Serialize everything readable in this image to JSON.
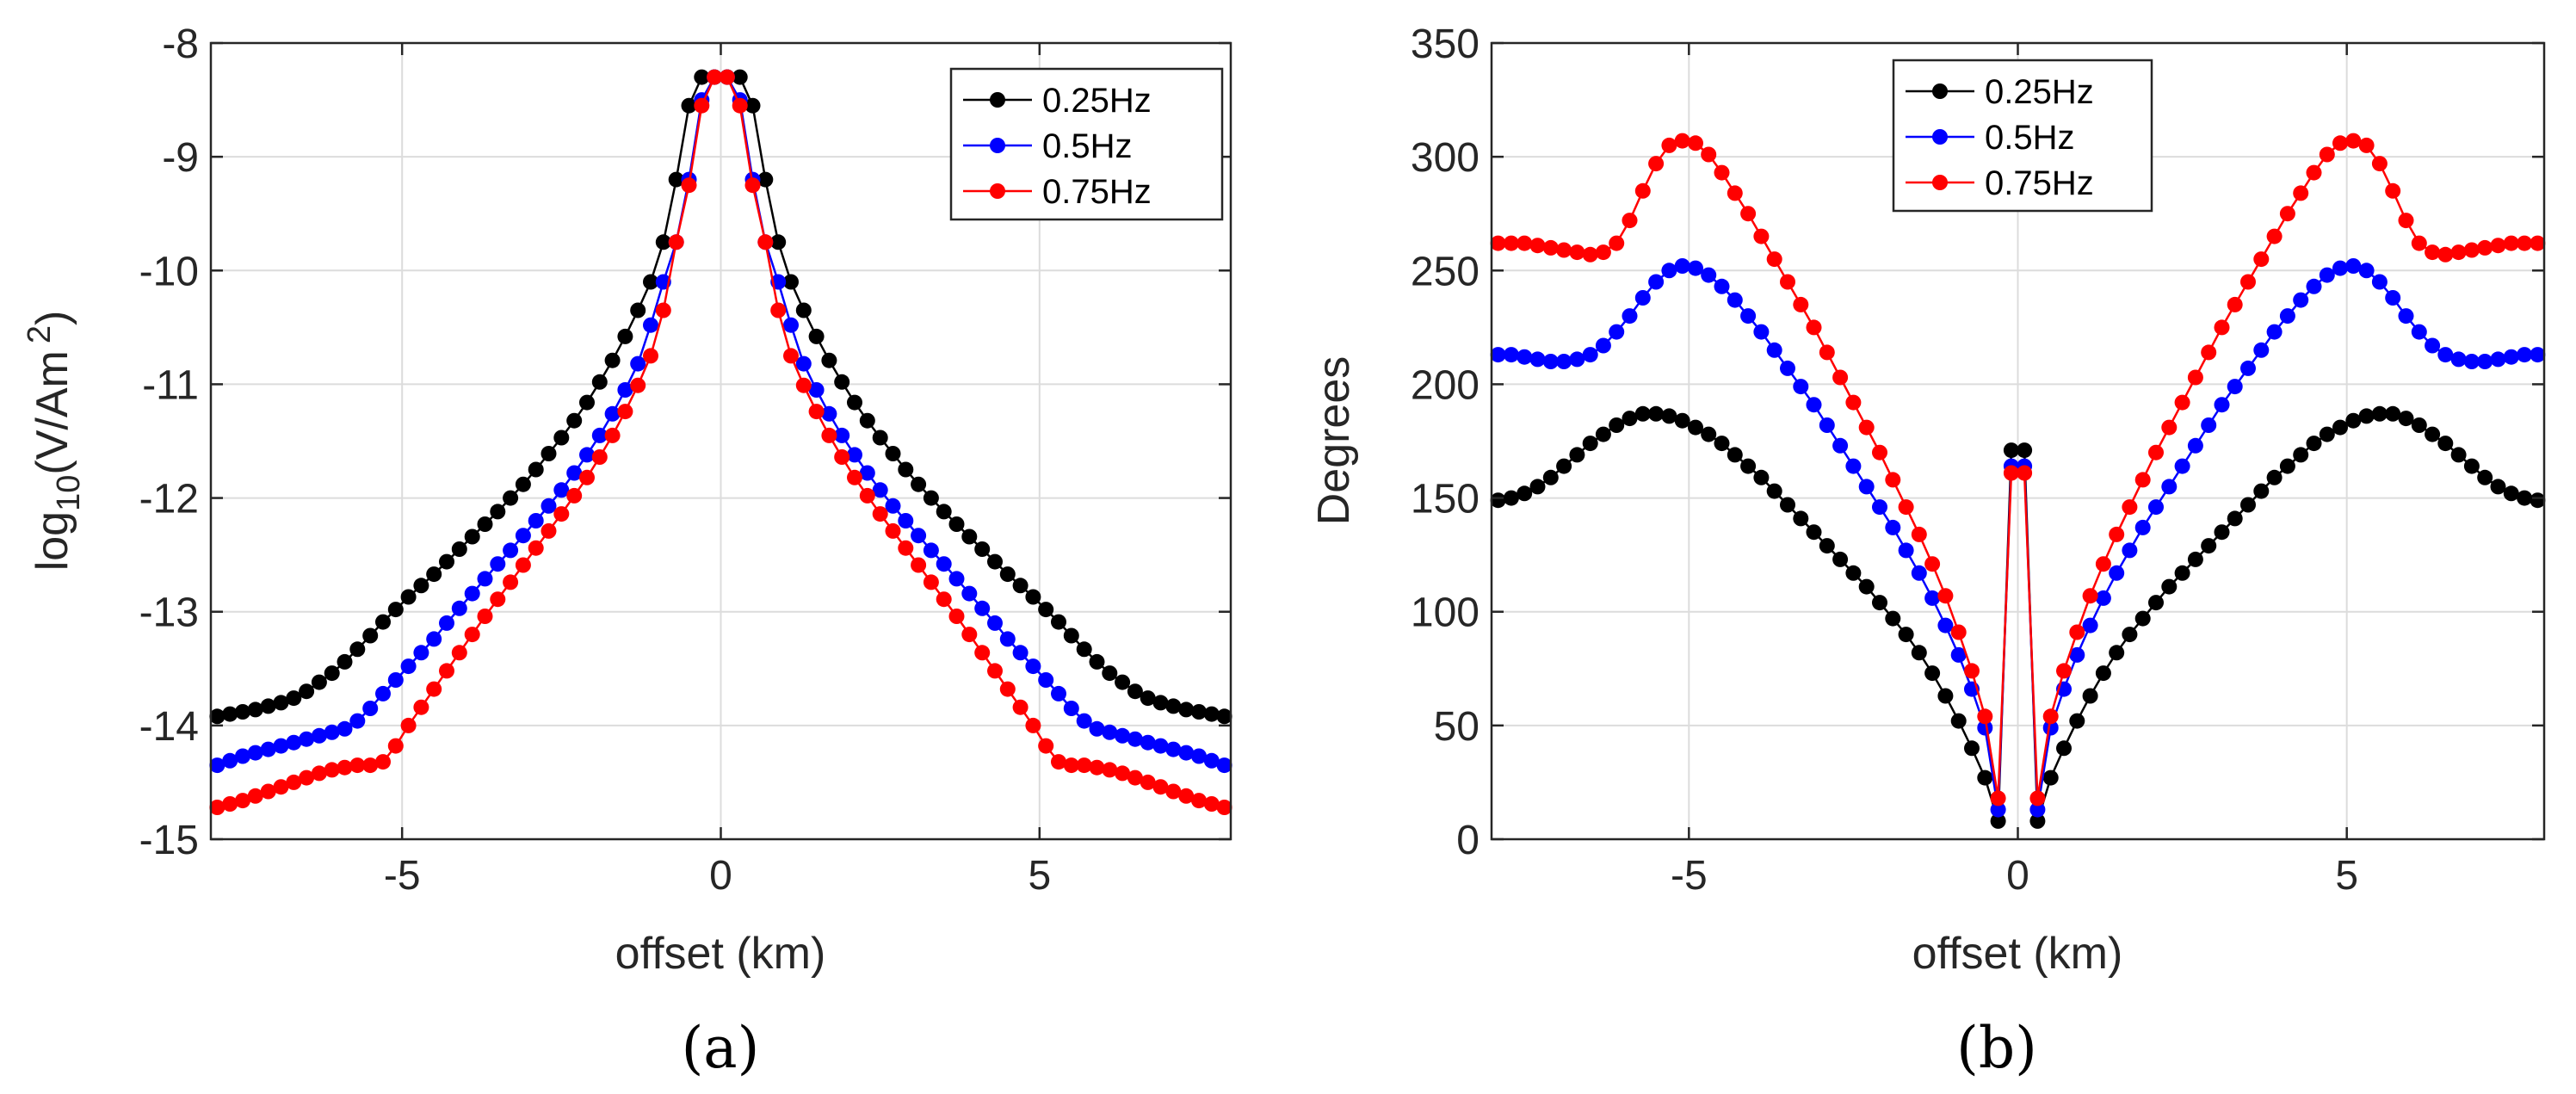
{
  "chart_data": [
    {
      "type": "line",
      "panel_label": "(a)",
      "title": "",
      "xlabel": "offset (km)",
      "ylabel_main": "log",
      "ylabel_sub": "10",
      "ylabel_rest": "(V/Am",
      "ylabel_sup": "2",
      "ylabel_close": ")",
      "xlim": [
        -8,
        8
      ],
      "ylim": [
        -15,
        -8
      ],
      "xticks": [
        -5,
        0,
        5
      ],
      "xtick_labels": [
        "-5",
        "0",
        "5"
      ],
      "yticks": [
        -15,
        -14,
        -13,
        -12,
        -11,
        -10,
        -9,
        -8
      ],
      "ytick_labels": [
        "-15",
        "-14",
        "-13",
        "-12",
        "-11",
        "-10",
        "-9",
        "-8"
      ],
      "grid": true,
      "legend_position": "top-right",
      "x": [
        -7.9,
        -7.7,
        -7.5,
        -7.3,
        -7.1,
        -6.9,
        -6.7,
        -6.5,
        -6.3,
        -6.1,
        -5.9,
        -5.7,
        -5.5,
        -5.3,
        -5.1,
        -4.9,
        -4.7,
        -4.5,
        -4.3,
        -4.1,
        -3.9,
        -3.7,
        -3.5,
        -3.3,
        -3.1,
        -2.9,
        -2.7,
        -2.5,
        -2.3,
        -2.1,
        -1.9,
        -1.7,
        -1.5,
        -1.3,
        -1.1,
        -0.9,
        -0.7,
        -0.5,
        -0.3,
        -0.1,
        0.1,
        0.3,
        0.5,
        0.7,
        0.9,
        1.1,
        1.3,
        1.5,
        1.7,
        1.9,
        2.1,
        2.3,
        2.5,
        2.7,
        2.9,
        3.1,
        3.3,
        3.5,
        3.7,
        3.9,
        4.1,
        4.3,
        4.5,
        4.7,
        4.9,
        5.1,
        5.3,
        5.5,
        5.7,
        5.9,
        6.1,
        6.3,
        6.5,
        6.7,
        6.9,
        7.1,
        7.3,
        7.5,
        7.7,
        7.9
      ],
      "series": [
        {
          "name": "0.25Hz",
          "color": "#000000",
          "values": [
            -13.92,
            -13.9,
            -13.88,
            -13.86,
            -13.83,
            -13.8,
            -13.76,
            -13.7,
            -13.62,
            -13.54,
            -13.44,
            -13.33,
            -13.21,
            -13.09,
            -12.98,
            -12.87,
            -12.77,
            -12.67,
            -12.56,
            -12.45,
            -12.34,
            -12.23,
            -12.12,
            -12.0,
            -11.88,
            -11.75,
            -11.61,
            -11.47,
            -11.32,
            -11.16,
            -10.98,
            -10.79,
            -10.58,
            -10.35,
            -10.1,
            -9.75,
            -9.2,
            -8.55,
            -8.3,
            -8.3,
            -8.3,
            -8.3,
            -8.55,
            -9.2,
            -9.75,
            -10.1,
            -10.35,
            -10.58,
            -10.79,
            -10.98,
            -11.16,
            -11.32,
            -11.47,
            -11.61,
            -11.75,
            -11.88,
            -12.0,
            -12.12,
            -12.23,
            -12.34,
            -12.45,
            -12.56,
            -12.67,
            -12.77,
            -12.87,
            -12.98,
            -13.09,
            -13.21,
            -13.33,
            -13.44,
            -13.54,
            -13.62,
            -13.7,
            -13.76,
            -13.8,
            -13.83,
            -13.86,
            -13.88,
            -13.9,
            -13.92
          ]
        },
        {
          "name": "0.5Hz",
          "color": "#0000ff",
          "values": [
            -14.35,
            -14.31,
            -14.27,
            -14.24,
            -14.21,
            -14.18,
            -14.15,
            -14.12,
            -14.09,
            -14.06,
            -14.03,
            -13.96,
            -13.85,
            -13.72,
            -13.6,
            -13.48,
            -13.36,
            -13.24,
            -13.1,
            -12.97,
            -12.84,
            -12.71,
            -12.58,
            -12.46,
            -12.33,
            -12.2,
            -12.07,
            -11.93,
            -11.78,
            -11.62,
            -11.45,
            -11.26,
            -11.05,
            -10.82,
            -10.48,
            -10.1,
            -9.75,
            -9.2,
            -8.5,
            -8.3,
            -8.3,
            -8.5,
            -9.2,
            -9.75,
            -10.1,
            -10.48,
            -10.82,
            -11.05,
            -11.26,
            -11.45,
            -11.62,
            -11.78,
            -11.93,
            -12.07,
            -12.2,
            -12.33,
            -12.46,
            -12.58,
            -12.71,
            -12.84,
            -12.97,
            -13.1,
            -13.24,
            -13.36,
            -13.48,
            -13.6,
            -13.72,
            -13.85,
            -13.96,
            -14.03,
            -14.06,
            -14.09,
            -14.12,
            -14.15,
            -14.18,
            -14.21,
            -14.24,
            -14.27,
            -14.31,
            -14.35
          ]
        },
        {
          "name": "0.75Hz",
          "color": "#ff0000",
          "values": [
            -14.72,
            -14.69,
            -14.66,
            -14.62,
            -14.58,
            -14.54,
            -14.5,
            -14.46,
            -14.42,
            -14.39,
            -14.37,
            -14.35,
            -14.35,
            -14.32,
            -14.18,
            -14.0,
            -13.84,
            -13.68,
            -13.52,
            -13.36,
            -13.2,
            -13.04,
            -12.89,
            -12.74,
            -12.59,
            -12.44,
            -12.29,
            -12.14,
            -11.98,
            -11.82,
            -11.64,
            -11.45,
            -11.24,
            -11.01,
            -10.75,
            -10.35,
            -9.75,
            -9.25,
            -8.55,
            -8.3,
            -8.3,
            -8.55,
            -9.25,
            -9.75,
            -10.35,
            -10.75,
            -11.01,
            -11.24,
            -11.45,
            -11.64,
            -11.82,
            -11.98,
            -12.14,
            -12.29,
            -12.44,
            -12.59,
            -12.74,
            -12.89,
            -13.04,
            -13.2,
            -13.36,
            -13.52,
            -13.68,
            -13.84,
            -14.0,
            -14.18,
            -14.32,
            -14.35,
            -14.35,
            -14.37,
            -14.39,
            -14.42,
            -14.46,
            -14.5,
            -14.54,
            -14.58,
            -14.62,
            -14.66,
            -14.69,
            -14.72
          ]
        }
      ]
    },
    {
      "type": "line",
      "panel_label": "(b)",
      "title": "",
      "xlabel": "offset (km)",
      "ylabel": "Degrees",
      "xlim": [
        -8,
        8
      ],
      "ylim": [
        0,
        350
      ],
      "xticks": [
        -5,
        0,
        5
      ],
      "xtick_labels": [
        "-5",
        "0",
        "5"
      ],
      "yticks": [
        0,
        50,
        100,
        150,
        200,
        250,
        300,
        350
      ],
      "ytick_labels": [
        "0",
        "50",
        "100",
        "150",
        "200",
        "250",
        "300",
        "350"
      ],
      "grid": true,
      "legend_position": "top-center",
      "x": [
        -7.9,
        -7.7,
        -7.5,
        -7.3,
        -7.1,
        -6.9,
        -6.7,
        -6.5,
        -6.3,
        -6.1,
        -5.9,
        -5.7,
        -5.5,
        -5.3,
        -5.1,
        -4.9,
        -4.7,
        -4.5,
        -4.3,
        -4.1,
        -3.9,
        -3.7,
        -3.5,
        -3.3,
        -3.1,
        -2.9,
        -2.7,
        -2.5,
        -2.3,
        -2.1,
        -1.9,
        -1.7,
        -1.5,
        -1.3,
        -1.1,
        -0.9,
        -0.7,
        -0.5,
        -0.3,
        -0.1,
        0.1,
        0.3,
        0.5,
        0.7,
        0.9,
        1.1,
        1.3,
        1.5,
        1.7,
        1.9,
        2.1,
        2.3,
        2.5,
        2.7,
        2.9,
        3.1,
        3.3,
        3.5,
        3.7,
        3.9,
        4.1,
        4.3,
        4.5,
        4.7,
        4.9,
        5.1,
        5.3,
        5.5,
        5.7,
        5.9,
        6.1,
        6.3,
        6.5,
        6.7,
        6.9,
        7.1,
        7.3,
        7.5,
        7.7,
        7.9
      ],
      "series": [
        {
          "name": "0.25Hz",
          "color": "#000000",
          "values": [
            149,
            150,
            152,
            155,
            159,
            164,
            169,
            174,
            178,
            182,
            185,
            187,
            187,
            186,
            184,
            181,
            178,
            174,
            169,
            164,
            159,
            153,
            147,
            141,
            135,
            129,
            123,
            117,
            111,
            104,
            97,
            90,
            82,
            73,
            63,
            52,
            40,
            27,
            8,
            171,
            171,
            8,
            27,
            40,
            52,
            63,
            73,
            82,
            90,
            97,
            104,
            111,
            117,
            123,
            129,
            135,
            141,
            147,
            153,
            159,
            164,
            169,
            174,
            178,
            181,
            184,
            186,
            187,
            187,
            185,
            182,
            178,
            174,
            169,
            164,
            159,
            155,
            152,
            150,
            149
          ]
        },
        {
          "name": "0.5Hz",
          "color": "#0000ff",
          "values": [
            213,
            213,
            212,
            211,
            210,
            210,
            211,
            213,
            217,
            223,
            230,
            238,
            245,
            250,
            252,
            251,
            248,
            243,
            237,
            230,
            223,
            215,
            207,
            199,
            191,
            182,
            173,
            164,
            155,
            146,
            137,
            127,
            117,
            106,
            94,
            81,
            66,
            49,
            13,
            164,
            164,
            13,
            49,
            66,
            81,
            94,
            106,
            117,
            127,
            137,
            146,
            155,
            164,
            173,
            182,
            191,
            199,
            207,
            215,
            223,
            230,
            237,
            243,
            248,
            251,
            252,
            250,
            245,
            238,
            230,
            223,
            217,
            213,
            211,
            210,
            210,
            211,
            212,
            213,
            213
          ]
        },
        {
          "name": "0.75Hz",
          "color": "#ff0000",
          "values": [
            262,
            262,
            262,
            261,
            260,
            259,
            258,
            257,
            258,
            262,
            272,
            285,
            297,
            305,
            307,
            306,
            301,
            293,
            284,
            275,
            265,
            255,
            245,
            235,
            225,
            214,
            203,
            192,
            181,
            170,
            158,
            146,
            134,
            121,
            107,
            91,
            74,
            54,
            18,
            161,
            161,
            18,
            54,
            74,
            91,
            107,
            121,
            134,
            146,
            158,
            170,
            181,
            192,
            203,
            214,
            225,
            235,
            245,
            255,
            265,
            275,
            284,
            293,
            301,
            306,
            307,
            305,
            297,
            285,
            272,
            262,
            258,
            257,
            258,
            259,
            260,
            261,
            262,
            262,
            262
          ]
        }
      ]
    }
  ]
}
